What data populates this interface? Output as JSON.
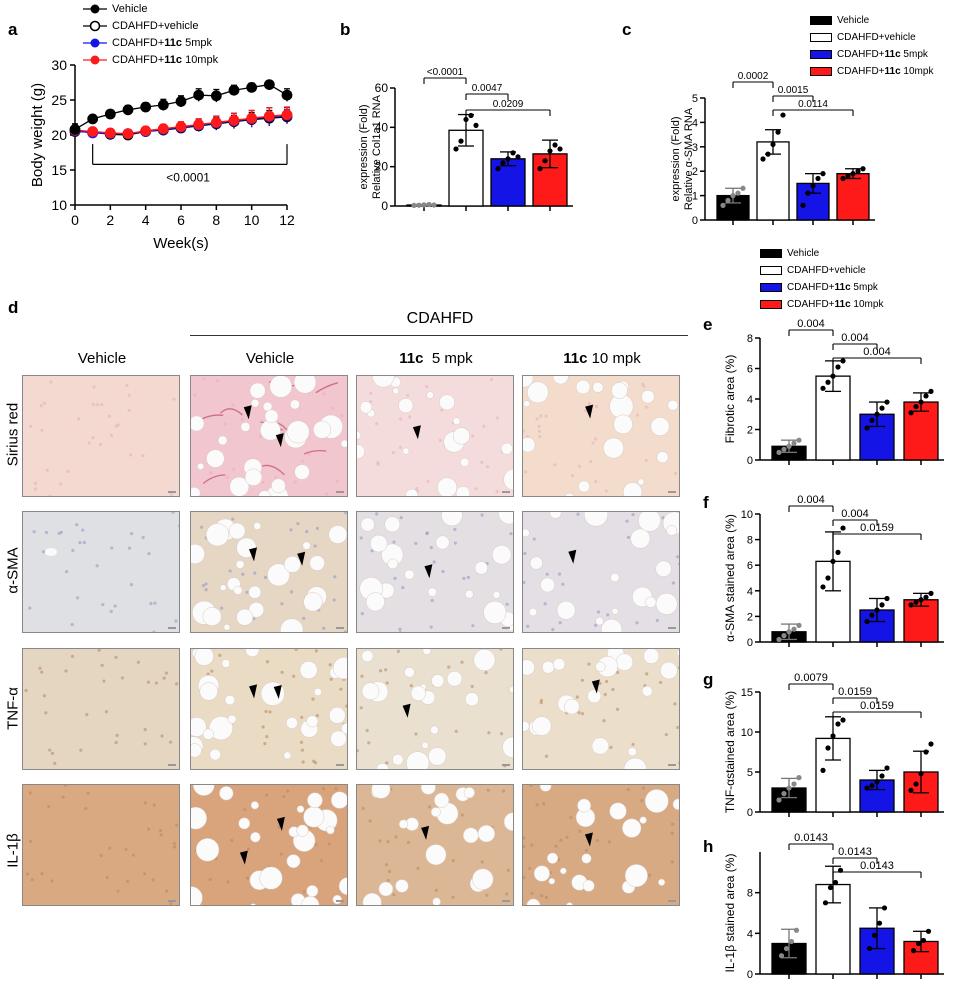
{
  "panel_labels": {
    "a": "a",
    "b": "b",
    "c": "c",
    "d": "d",
    "e": "e",
    "f": "f",
    "g": "g",
    "h": "h"
  },
  "colors": {
    "vehicle": "#000000",
    "cdahfd": "#ffffff",
    "low": "#1414e6",
    "high": "#ff1a1a"
  },
  "legend_a": [
    {
      "text": "Vehicle"
    },
    {
      "text": "CDAHFD+vehicle"
    },
    {
      "pre": "CDAHFD+",
      "bold": "11c",
      "post": " 5mpk"
    },
    {
      "pre": "CDAHFD+",
      "bold": "11c",
      "post": " 10mpk"
    }
  ],
  "legend_bar": [
    {
      "text": "Vehicle"
    },
    {
      "text": "CDAHFD+vehicle"
    },
    {
      "pre": "CDAHFD+",
      "bold": "11c",
      "post": " 5mpk"
    },
    {
      "pre": "CDAHFD+",
      "bold": "11c",
      "post": " 10mpk"
    }
  ],
  "histology": {
    "group_header": "CDAHFD",
    "col_headers": [
      {
        "plain": "Vehicle"
      },
      {
        "plain": "Vehicle"
      },
      {
        "bold": "11c",
        "rest": "  5 mpk"
      },
      {
        "bold": "11c",
        "rest": " 10 mpk"
      }
    ],
    "row_labels": [
      "Sirius red",
      "α-SMA",
      "TNF-α",
      "IL-1β"
    ]
  },
  "chart_data": [
    {
      "id": "a",
      "type": "line",
      "xlabel": "Week(s)",
      "ylabel": "Body weight (g)",
      "xlim": [
        0,
        12
      ],
      "ylim": [
        10,
        30
      ],
      "xticks": [
        0,
        2,
        4,
        6,
        8,
        10,
        12
      ],
      "yticks": [
        10,
        15,
        20,
        25,
        30
      ],
      "x": [
        0,
        1,
        2,
        3,
        4,
        5,
        6,
        7,
        8,
        9,
        10,
        11,
        12
      ],
      "series": [
        {
          "name": "Vehicle",
          "values": [
            20.8,
            22.3,
            23.0,
            23.6,
            24.0,
            24.3,
            24.8,
            25.7,
            25.6,
            26.4,
            26.8,
            27.2,
            25.7
          ],
          "err": [
            0.8,
            0.4,
            0.5,
            0.6,
            0.6,
            0.8,
            0.8,
            0.9,
            0.9,
            0.7,
            0.6,
            0.4,
            0.9
          ]
        },
        {
          "name": "CDAHFD+vehicle",
          "values": [
            20.5,
            20.4,
            20.1,
            20.0,
            20.5,
            20.7,
            21.0,
            21.3,
            21.6,
            21.9,
            22.2,
            22.4,
            22.6
          ],
          "err": [
            0.5,
            0.5,
            0.5,
            0.5,
            0.5,
            0.6,
            0.6,
            0.8,
            0.9,
            0.9,
            1.0,
            1.1,
            1.0
          ]
        },
        {
          "name": "CDAHFD+11c 5mpk",
          "values": [
            20.6,
            20.3,
            20.2,
            20.2,
            20.5,
            20.8,
            21.1,
            21.4,
            21.7,
            22.0,
            22.3,
            22.6,
            22.8
          ],
          "err": [
            0.5,
            0.5,
            0.5,
            0.5,
            0.5,
            0.6,
            0.7,
            0.9,
            1.0,
            1.1,
            1.2,
            1.3,
            1.1
          ]
        },
        {
          "name": "CDAHFD+11c 10mpk",
          "values": [
            20.7,
            20.5,
            20.3,
            20.2,
            20.6,
            20.9,
            21.2,
            21.5,
            21.8,
            22.1,
            22.4,
            22.7,
            22.9
          ],
          "err": [
            0.5,
            0.5,
            0.5,
            0.5,
            0.6,
            0.6,
            0.7,
            0.8,
            0.9,
            1.0,
            1.1,
            1.2,
            1.1
          ]
        }
      ],
      "annotation": "<0.0001"
    },
    {
      "id": "b",
      "type": "bar",
      "ylabel_lines": [
        "Relative Col1a1 RNA",
        "expression (Fold)"
      ],
      "ylim": [
        0,
        60
      ],
      "yticks": [
        0,
        20,
        40,
        60
      ],
      "values": [
        0.5,
        38.5,
        24,
        26.5
      ],
      "err": [
        0.3,
        8,
        3.5,
        7
      ],
      "points": [
        [
          0.3,
          0.4,
          0.6,
          0.8,
          0.5
        ],
        [
          29,
          33,
          44,
          46,
          41
        ],
        [
          19,
          22,
          24,
          27,
          25
        ],
        [
          19,
          23,
          28,
          31,
          29
        ]
      ],
      "comparisons": [
        {
          "from": 0,
          "to": 1,
          "label": "<0.0001",
          "level": 0
        },
        {
          "from": 1,
          "to": 2,
          "label": "0.0047",
          "level": 1
        },
        {
          "from": 1,
          "to": 3,
          "label": "0.0209",
          "level": 2
        }
      ]
    },
    {
      "id": "c",
      "type": "bar",
      "ylabel_lines": [
        "Relative α-SMA RNA",
        "expression (Fold)"
      ],
      "ylim": [
        0,
        5
      ],
      "yticks": [
        0,
        1,
        2,
        3,
        4,
        5
      ],
      "values": [
        1,
        3.2,
        1.5,
        1.9
      ],
      "err": [
        0.3,
        0.5,
        0.4,
        0.2
      ],
      "points": [
        [
          0.6,
          0.8,
          1.0,
          1.1,
          1.3
        ],
        [
          2.5,
          2.7,
          3.1,
          3.6,
          4.3
        ],
        [
          0.6,
          1.1,
          1.4,
          1.7,
          1.9
        ],
        [
          1.7,
          1.8,
          1.9,
          2.0,
          2.1
        ]
      ],
      "comparisons": [
        {
          "from": 0,
          "to": 1,
          "label": "0.0002",
          "level": 0
        },
        {
          "from": 1,
          "to": 2,
          "label": "0.0015",
          "level": 1
        },
        {
          "from": 1,
          "to": 3,
          "label": "0.0114",
          "level": 2
        }
      ]
    },
    {
      "id": "e",
      "type": "bar",
      "ylabel_lines": [
        "Fibrotic area (%)"
      ],
      "ylim": [
        0,
        8
      ],
      "yticks": [
        0,
        2,
        4,
        6,
        8
      ],
      "values": [
        0.9,
        5.5,
        3.0,
        3.8
      ],
      "err": [
        0.4,
        1.0,
        0.8,
        0.6
      ],
      "points": [
        [
          0.5,
          0.7,
          0.9,
          1.1,
          1.3
        ],
        [
          4.7,
          5.1,
          5.5,
          6.1,
          6.5
        ],
        [
          2.1,
          2.6,
          3.0,
          3.4,
          3.8
        ],
        [
          3.1,
          3.5,
          3.8,
          4.2,
          4.5
        ]
      ],
      "comparisons": [
        {
          "from": 0,
          "to": 1,
          "label": "0.004",
          "level": 0
        },
        {
          "from": 1,
          "to": 2,
          "label": "0.004",
          "level": 1
        },
        {
          "from": 1,
          "to": 3,
          "label": "0.004",
          "level": 2
        }
      ]
    },
    {
      "id": "f",
      "type": "bar",
      "ylabel_lines": [
        "α-SMA stained area (%)"
      ],
      "ylim": [
        0,
        10
      ],
      "yticks": [
        0,
        2,
        4,
        6,
        8,
        10
      ],
      "values": [
        0.8,
        6.3,
        2.5,
        3.3
      ],
      "err": [
        0.6,
        2.3,
        0.9,
        0.5
      ],
      "points": [
        [
          0.2,
          0.5,
          0.8,
          1.0,
          1.3
        ],
        [
          4.3,
          5.0,
          6.3,
          7.0,
          8.9
        ],
        [
          1.6,
          2.1,
          2.5,
          2.9,
          3.4
        ],
        [
          2.9,
          3.1,
          3.3,
          3.5,
          3.8
        ]
      ],
      "comparisons": [
        {
          "from": 0,
          "to": 1,
          "label": "0.004",
          "level": 0
        },
        {
          "from": 1,
          "to": 2,
          "label": "0.004",
          "level": 1
        },
        {
          "from": 1,
          "to": 3,
          "label": "0.0159",
          "level": 2
        }
      ]
    },
    {
      "id": "g",
      "type": "bar",
      "ylabel_lines": [
        "TNF-αstained area (%)"
      ],
      "ylim": [
        0,
        15
      ],
      "yticks": [
        0,
        5,
        10,
        15
      ],
      "values": [
        3.0,
        9.2,
        4.0,
        5.0
      ],
      "err": [
        1.2,
        2.7,
        1.2,
        2.6
      ],
      "points": [
        [
          1.5,
          2.3,
          3.0,
          3.5,
          4.3
        ],
        [
          5.2,
          8.0,
          9.5,
          11.0,
          11.5
        ],
        [
          3.0,
          3.3,
          3.8,
          4.5,
          5.5
        ],
        [
          2.7,
          3.5,
          4.8,
          7.5,
          8.5
        ]
      ],
      "comparisons": [
        {
          "from": 0,
          "to": 1,
          "label": "0.0079",
          "level": 0
        },
        {
          "from": 1,
          "to": 2,
          "label": "0.0159",
          "level": 1
        },
        {
          "from": 1,
          "to": 3,
          "label": "0.0159",
          "level": 2
        }
      ]
    },
    {
      "id": "h",
      "type": "bar",
      "ylabel_lines": [
        "IL-1β stained area (%)"
      ],
      "ylim": [
        0,
        12
      ],
      "yticks": [
        0,
        4,
        8
      ],
      "values": [
        3.0,
        8.8,
        4.5,
        3.2
      ],
      "err": [
        1.4,
        1.8,
        2.0,
        1.0
      ],
      "points": [
        [
          1.8,
          2.5,
          3.2,
          4.3
        ],
        [
          7.0,
          8.5,
          9.0,
          10.2
        ],
        [
          2.5,
          3.8,
          5.0,
          6.5
        ],
        [
          2.3,
          3.0,
          3.3,
          4.2
        ]
      ],
      "comparisons": [
        {
          "from": 0,
          "to": 1,
          "label": "0.0143",
          "level": 0
        },
        {
          "from": 1,
          "to": 2,
          "label": "0.0143",
          "level": 1
        },
        {
          "from": 1,
          "to": 3,
          "label": "0.0143",
          "level": 2
        }
      ]
    }
  ]
}
